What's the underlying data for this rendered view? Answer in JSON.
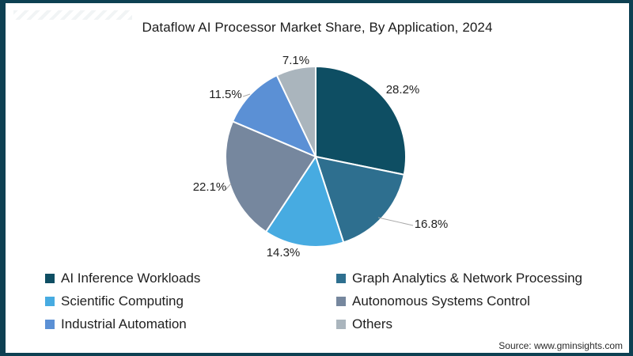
{
  "frame": {
    "border_color": "#0d4052",
    "background": "#ffffff"
  },
  "title": "Dataflow AI Processor Market Share, By Application, 2024",
  "source": "Source: www.gminsights.com",
  "chart_data": {
    "type": "pie",
    "title": "Dataflow AI Processor Market Share, By Application, 2024",
    "unit": "%",
    "start_angle": "12 o'clock, clockwise",
    "legend_position": "bottom, two columns",
    "labels": "percent values outside slices",
    "series": [
      {
        "name": "AI Inference Workloads",
        "value": 28.2,
        "color": "#0e4e63"
      },
      {
        "name": "Graph Analytics & Network Processing",
        "value": 16.8,
        "color": "#2e6f8f"
      },
      {
        "name": "Scientific Computing",
        "value": 14.3,
        "color": "#47abe1"
      },
      {
        "name": "Autonomous Systems Control",
        "value": 22.1,
        "color": "#76879e"
      },
      {
        "name": "Industrial Automation",
        "value": 11.5,
        "color": "#5b90d5"
      },
      {
        "name": "Others",
        "value": 7.1,
        "color": "#aab5bd"
      }
    ]
  }
}
